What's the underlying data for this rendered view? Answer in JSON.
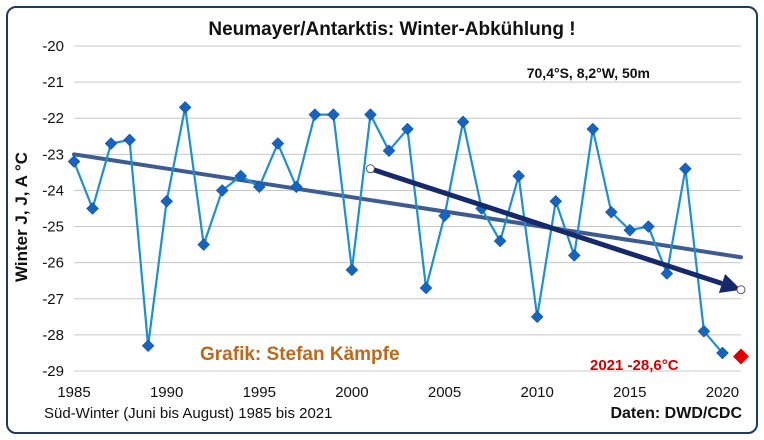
{
  "chart_data": {
    "type": "line",
    "title": "Neumayer/Antarktis:  Winter-Abkühlung  !",
    "station_info": "70,4°S, 8,2°W, 50m",
    "ylabel": "Winter J, J, A °C",
    "xlabel": "Süd-Winter (Juni bis August) 1985 bis 2021",
    "source": "Daten: DWD/CDC",
    "credit": "Grafik: Stefan Kämpfe",
    "highlight_label": "2021 -28,6°C",
    "xlim": [
      1985,
      2021
    ],
    "ylim": [
      -29,
      -20
    ],
    "x_ticks": [
      1985,
      1990,
      1995,
      2000,
      2005,
      2010,
      2015,
      2020
    ],
    "y_ticks": [
      -20,
      -21,
      -22,
      -23,
      -24,
      -25,
      -26,
      -27,
      -28,
      -29
    ],
    "grid": true,
    "series": [
      {
        "name": "",
        "x": [
          1985,
          1986,
          1987,
          1988,
          1989,
          1990,
          1991,
          1992,
          1993,
          1994,
          1995,
          1996,
          1997,
          1998,
          1999,
          2000,
          2001,
          2002,
          2003,
          2004,
          2005,
          2006,
          2007,
          2008,
          2009,
          2010,
          2011,
          2012,
          2013,
          2014,
          2015,
          2016,
          2017,
          2018,
          2019,
          2020
        ],
        "y": [
          -23.2,
          -24.5,
          -22.7,
          -22.6,
          -28.3,
          -24.3,
          -21.7,
          -25.5,
          -24.0,
          -23.6,
          -23.9,
          -22.7,
          -23.9,
          -21.9,
          -21.9,
          -26.2,
          -21.9,
          -22.9,
          -22.3,
          -26.7,
          -24.7,
          -22.1,
          -24.5,
          -25.4,
          -23.6,
          -27.5,
          -24.3,
          -25.8,
          -22.3,
          -24.6,
          -25.1,
          -25.0,
          -26.3,
          -23.4,
          -27.9,
          -28.5
        ],
        "color": "#1e8fd0",
        "marker": "diamond"
      }
    ],
    "highlight_point": {
      "x": 2021,
      "y": -28.6,
      "color": "#e00000"
    },
    "trend_line": {
      "x": [
        1985,
        2021
      ],
      "y": [
        -23.0,
        -25.85
      ],
      "color": "#3e5c92"
    },
    "arrow": {
      "x": [
        2001,
        2021
      ],
      "y": [
        -23.4,
        -26.75
      ],
      "color": "#15296b"
    }
  }
}
